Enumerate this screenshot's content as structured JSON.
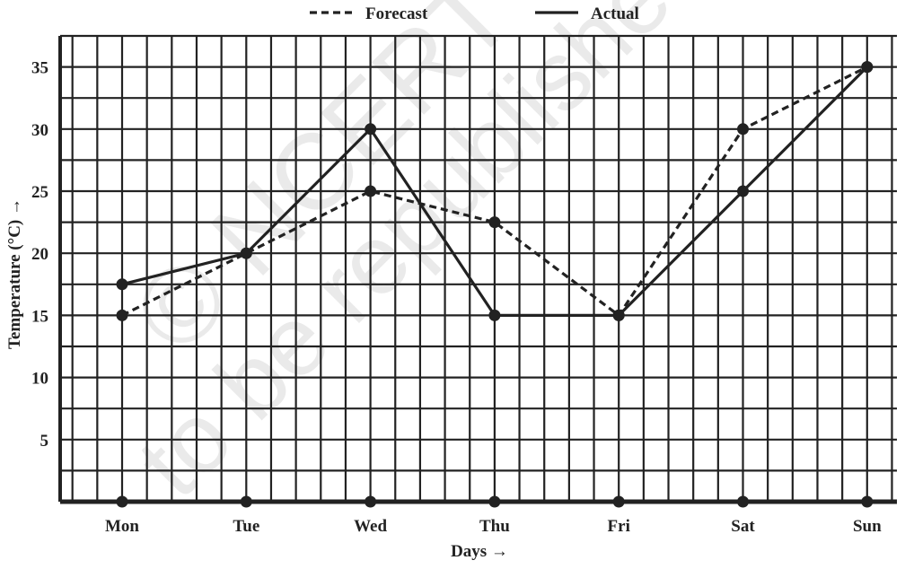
{
  "watermark": {
    "line1": "© NCERT",
    "line2": "to be republished"
  },
  "chart_data": {
    "type": "line",
    "categories": [
      "Mon",
      "Tue",
      "Wed",
      "Thu",
      "Fri",
      "Sat",
      "Sun"
    ],
    "series": [
      {
        "name": "Forecast",
        "style": "dashed",
        "values": [
          15,
          20,
          25,
          22.5,
          15,
          30,
          35
        ]
      },
      {
        "name": "Actual",
        "style": "solid",
        "values": [
          17.5,
          20,
          30,
          15,
          15,
          25,
          35
        ]
      }
    ],
    "xlabel": "Days →",
    "ylabel": "Temperature (°C) →",
    "yticks": [
      5,
      10,
      15,
      20,
      25,
      30,
      35
    ],
    "ylim": [
      0,
      37.5
    ],
    "grid": true,
    "legend_position": "top-center",
    "colors": {
      "line": "#222222",
      "grid": "#222222",
      "background": "#ffffff"
    }
  }
}
